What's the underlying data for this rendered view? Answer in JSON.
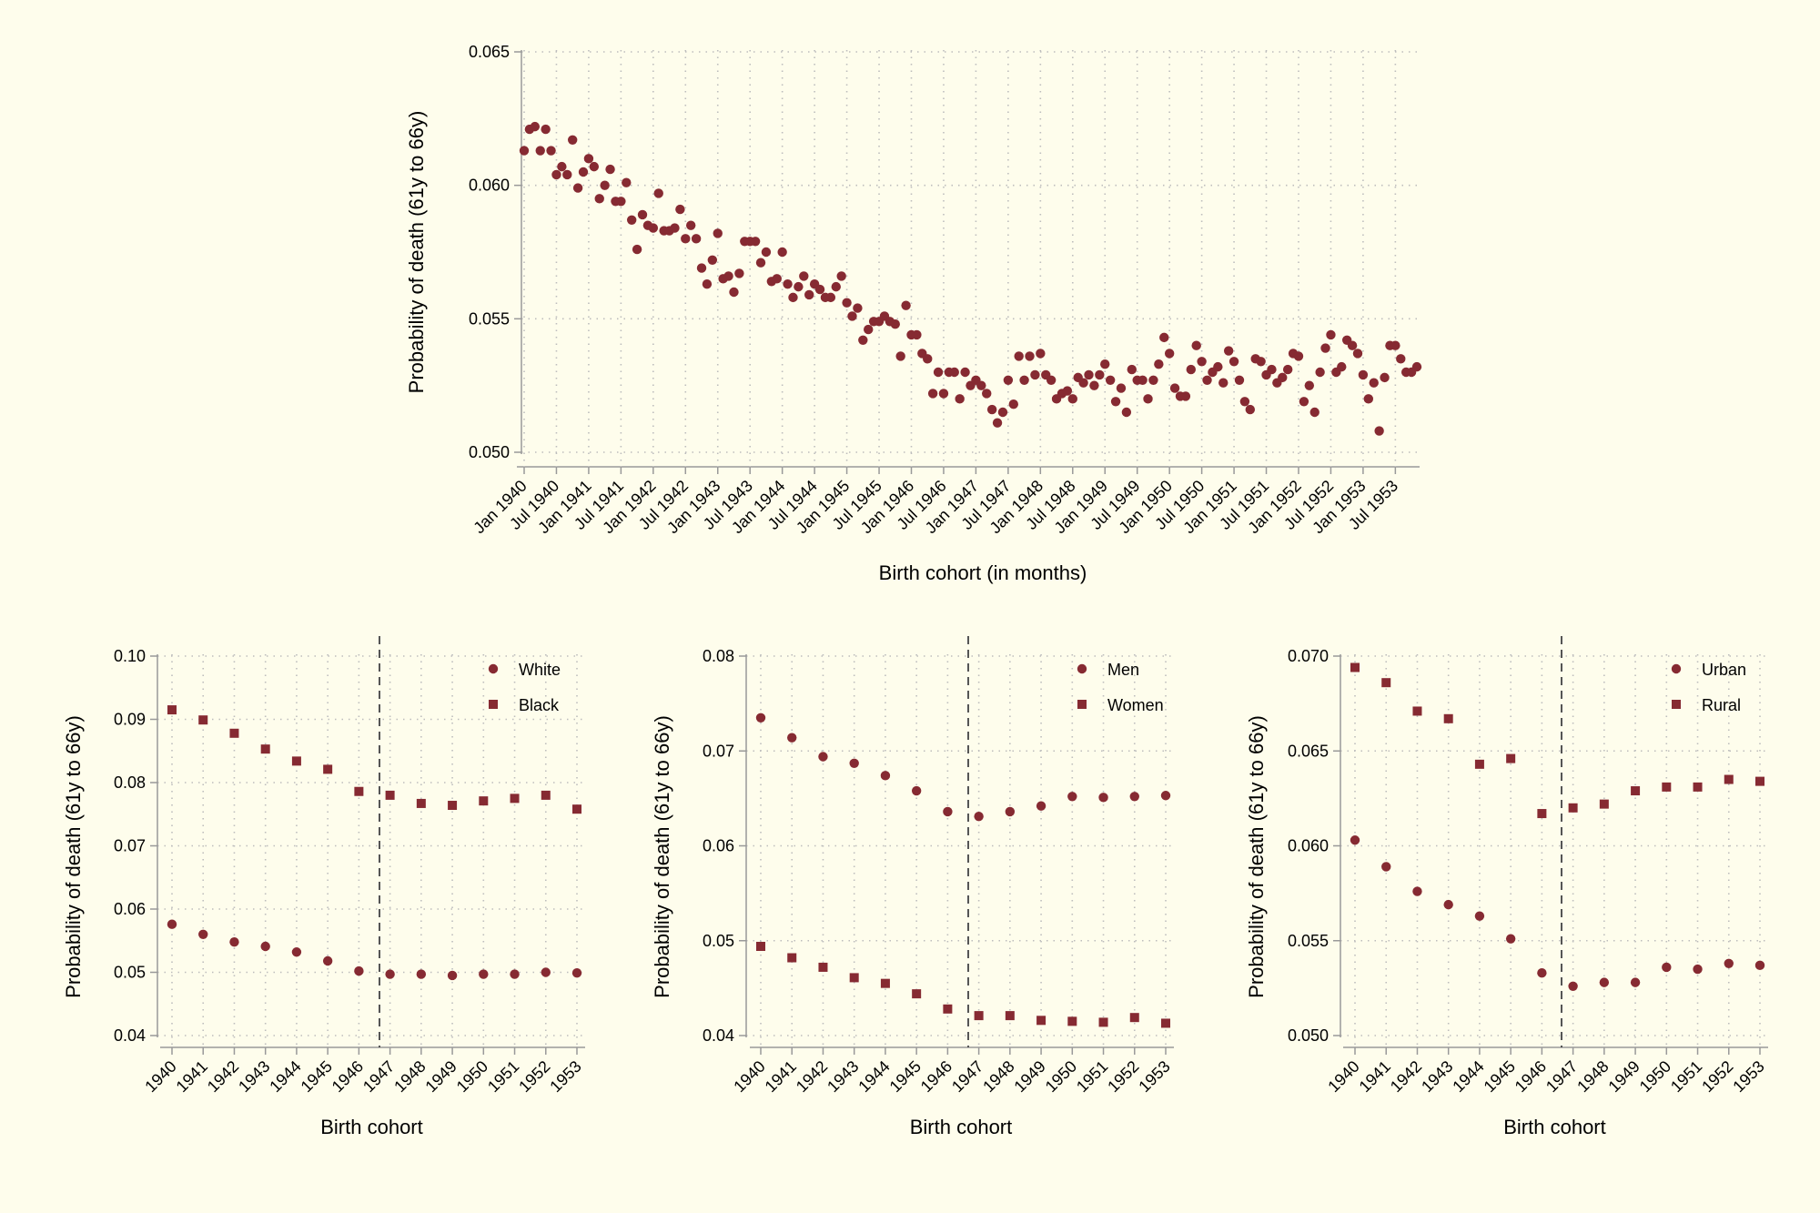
{
  "colors": {
    "background": "#fefdec",
    "marker": "#862a32",
    "grid": "#bdbdbd",
    "axis": "#999999",
    "ref_line": "#555555"
  },
  "chart_data": [
    {
      "id": "monthly",
      "type": "scatter",
      "xlabel": "Birth cohort (in months)",
      "ylabel": "Probability of death (61y to 66y)",
      "x_start": "Jan 1940",
      "x_unit": "month",
      "xlim": [
        "Jan 1940",
        "Dec 1953"
      ],
      "ylim": [
        0.05,
        0.065
      ],
      "yticks": [
        "0.050",
        "0.055",
        "0.060",
        "0.065"
      ],
      "xticks": [
        "Jan 1940",
        "Jul 1940",
        "Jan 1941",
        "Jul 1941",
        "Jan 1942",
        "Jul 1942",
        "Jan 1943",
        "Jul 1943",
        "Jan 1944",
        "Jul 1944",
        "Jan 1945",
        "Jul 1945",
        "Jan 1946",
        "Jul 1946",
        "Jan 1947",
        "Jul 1947",
        "Jan 1948",
        "Jul 1948",
        "Jan 1949",
        "Jul 1949",
        "Jan 1950",
        "Jul 1950",
        "Jan 1951",
        "Jul 1951",
        "Jan 1952",
        "Jul 1952",
        "Jan 1953",
        "Jul 1953"
      ],
      "grid": true,
      "values": [
        0.0613,
        0.0621,
        0.0622,
        0.0613,
        0.0621,
        0.0613,
        0.0604,
        0.0607,
        0.0604,
        0.0617,
        0.0599,
        0.0605,
        0.061,
        0.0607,
        0.0595,
        0.06,
        0.0606,
        0.0594,
        0.0594,
        0.0601,
        0.0587,
        0.0576,
        0.0589,
        0.0585,
        0.0584,
        0.0597,
        0.0583,
        0.0583,
        0.0584,
        0.0591,
        0.058,
        0.0585,
        0.058,
        0.0569,
        0.0563,
        0.0572,
        0.0582,
        0.0565,
        0.0566,
        0.056,
        0.0567,
        0.0579,
        0.0579,
        0.0579,
        0.0571,
        0.0575,
        0.0564,
        0.0565,
        0.0575,
        0.0563,
        0.0558,
        0.0562,
        0.0566,
        0.0559,
        0.0563,
        0.0561,
        0.0558,
        0.0558,
        0.0562,
        0.0566,
        0.0556,
        0.0551,
        0.0554,
        0.0542,
        0.0546,
        0.0549,
        0.0549,
        0.0551,
        0.0549,
        0.0548,
        0.0536,
        0.0555,
        0.0544,
        0.0544,
        0.0537,
        0.0535,
        0.0522,
        0.053,
        0.0522,
        0.053,
        0.053,
        0.052,
        0.053,
        0.0525,
        0.0527,
        0.0525,
        0.0522,
        0.0516,
        0.0511,
        0.0515,
        0.0527,
        0.0518,
        0.0536,
        0.0527,
        0.0536,
        0.0529,
        0.0537,
        0.0529,
        0.0527,
        0.052,
        0.0522,
        0.0523,
        0.052,
        0.0528,
        0.0526,
        0.0529,
        0.0525,
        0.0529,
        0.0533,
        0.0527,
        0.0519,
        0.0524,
        0.0515,
        0.0531,
        0.0527,
        0.0527,
        0.052,
        0.0527,
        0.0533,
        0.0543,
        0.0537,
        0.0524,
        0.0521,
        0.0521,
        0.0531,
        0.054,
        0.0534,
        0.0527,
        0.053,
        0.0532,
        0.0526,
        0.0538,
        0.0534,
        0.0527,
        0.0519,
        0.0516,
        0.0535,
        0.0534,
        0.0529,
        0.0531,
        0.0526,
        0.0528,
        0.0531,
        0.0537,
        0.0536,
        0.0519,
        0.0525,
        0.0515,
        0.053,
        0.0539,
        0.0544,
        0.053,
        0.0532,
        0.0542,
        0.054,
        0.0537,
        0.0529,
        0.052,
        0.0526,
        0.0508,
        0.0528,
        0.054,
        0.054,
        0.0535,
        0.053,
        0.053,
        0.0532
      ]
    },
    {
      "id": "race",
      "type": "scatter",
      "xlabel": "Birth cohort",
      "ylabel": "Probability of death (61y to 66y)",
      "categories": [
        "1940",
        "1941",
        "1942",
        "1943",
        "1944",
        "1945",
        "1946",
        "1947",
        "1948",
        "1949",
        "1950",
        "1951",
        "1952",
        "1953"
      ],
      "ylim": [
        0.04,
        0.1
      ],
      "yticks": [
        "0.04",
        "0.05",
        "0.06",
        "0.07",
        "0.08",
        "0.09",
        "0.10"
      ],
      "ref_line_x": 1946.67,
      "grid": true,
      "legend": "top-right",
      "series": [
        {
          "name": "White",
          "marker": "circle",
          "values": [
            0.0576,
            0.056,
            0.0548,
            0.0541,
            0.0532,
            0.0518,
            0.0502,
            0.0497,
            0.0497,
            0.0495,
            0.0497,
            0.0497,
            0.05,
            0.0499
          ]
        },
        {
          "name": "Black",
          "marker": "square",
          "values": [
            0.0915,
            0.0899,
            0.0878,
            0.0853,
            0.0834,
            0.0821,
            0.0786,
            0.078,
            0.0767,
            0.0764,
            0.0771,
            0.0775,
            0.078,
            0.0758
          ]
        }
      ]
    },
    {
      "id": "sex",
      "type": "scatter",
      "xlabel": "Birth cohort",
      "ylabel": "Probability of death (61y to 66y)",
      "categories": [
        "1940",
        "1941",
        "1942",
        "1943",
        "1944",
        "1945",
        "1946",
        "1947",
        "1948",
        "1949",
        "1950",
        "1951",
        "1952",
        "1953"
      ],
      "ylim": [
        0.04,
        0.08
      ],
      "yticks": [
        "0.04",
        "0.05",
        "0.06",
        "0.07",
        "0.08"
      ],
      "ref_line_x": 1946.67,
      "grid": true,
      "legend": "top-right",
      "series": [
        {
          "name": "Men",
          "marker": "circle",
          "values": [
            0.0735,
            0.0714,
            0.0694,
            0.0687,
            0.0674,
            0.0658,
            0.0636,
            0.0631,
            0.0636,
            0.0642,
            0.0652,
            0.0651,
            0.0652,
            0.0653
          ]
        },
        {
          "name": "Women",
          "marker": "square",
          "values": [
            0.0494,
            0.0482,
            0.0472,
            0.0461,
            0.0455,
            0.0444,
            0.0428,
            0.0421,
            0.0421,
            0.0416,
            0.0415,
            0.0414,
            0.0419,
            0.0413
          ]
        }
      ]
    },
    {
      "id": "area",
      "type": "scatter",
      "xlabel": "Birth cohort",
      "ylabel": "Probability of death (61y to 66y)",
      "categories": [
        "1940",
        "1941",
        "1942",
        "1943",
        "1944",
        "1945",
        "1946",
        "1947",
        "1948",
        "1949",
        "1950",
        "1951",
        "1952",
        "1953"
      ],
      "ylim": [
        0.05,
        0.07
      ],
      "yticks": [
        "0.050",
        "0.055",
        "0.060",
        "0.065",
        "0.070"
      ],
      "ref_line_x": 1946.67,
      "grid": true,
      "legend": "top-right",
      "series": [
        {
          "name": "Urban",
          "marker": "circle",
          "values": [
            0.0603,
            0.0589,
            0.0576,
            0.0569,
            0.0563,
            0.0551,
            0.0533,
            0.0526,
            0.0528,
            0.0528,
            0.0536,
            0.0535,
            0.0538,
            0.0537
          ]
        },
        {
          "name": "Rural",
          "marker": "square",
          "values": [
            0.0694,
            0.0686,
            0.0671,
            0.0667,
            0.0643,
            0.0646,
            0.0617,
            0.062,
            0.0622,
            0.0629,
            0.0631,
            0.0631,
            0.0635,
            0.0634
          ]
        }
      ]
    }
  ]
}
